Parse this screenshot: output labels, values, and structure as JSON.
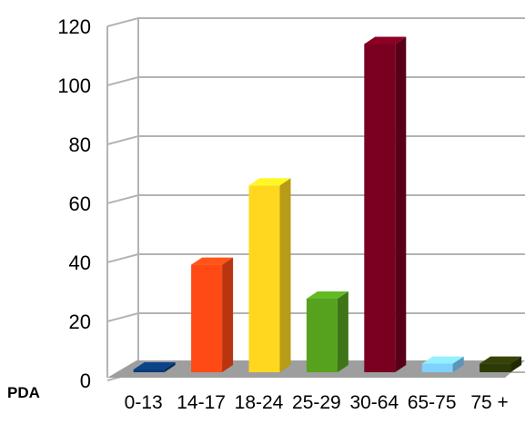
{
  "chart_data": {
    "type": "bar",
    "style": "3d",
    "categories": [
      "0-13",
      "14-17",
      "18-24",
      "25-29",
      "30-64",
      "65-75",
      "75 +"
    ],
    "series": [
      {
        "name": "PDA",
        "values": [
          0,
          38,
          66,
          26,
          116,
          3,
          3
        ]
      }
    ],
    "bar_colors": [
      "#0a3a78",
      "#ff4a16",
      "#ffd71e",
      "#56a21e",
      "#7a0020",
      "#7fd1ff",
      "#2e3a06"
    ],
    "ylim": [
      0,
      120
    ],
    "yticks": [
      "0",
      "20",
      "40",
      "60",
      "80",
      "100",
      "120"
    ],
    "grid": true,
    "floor_color": "#9e9e9e",
    "title": "",
    "xlabel": "",
    "ylabel": ""
  }
}
